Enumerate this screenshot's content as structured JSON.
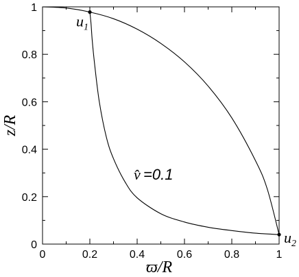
{
  "chart_data": {
    "type": "line",
    "xlabel": "ϖ/R",
    "ylabel": "z/R",
    "xlim": [
      0,
      1
    ],
    "ylim": [
      0,
      1
    ],
    "grid": false,
    "x_ticks": [
      "0",
      "0.2",
      "0.4",
      "0.6",
      "0.8",
      "1"
    ],
    "y_ticks": [
      "0",
      "0.2",
      "0.4",
      "0.6",
      "0.8",
      "1"
    ],
    "series": [
      {
        "x": [
          0,
          0.1,
          0.2,
          0.3,
          0.4,
          0.5,
          0.6,
          0.7,
          0.8,
          0.9,
          0.95,
          1.0
        ],
        "y": [
          1.0,
          0.995,
          0.978,
          0.95,
          0.906,
          0.846,
          0.768,
          0.666,
          0.532,
          0.352,
          0.232,
          0.04
        ]
      },
      {
        "x": [
          0.2,
          0.205,
          0.21,
          0.22,
          0.24,
          0.27,
          0.3,
          0.35,
          0.4,
          0.5,
          0.6,
          0.7,
          0.8,
          0.9,
          1.0
        ],
        "y": [
          0.978,
          0.93,
          0.86,
          0.76,
          0.6,
          0.45,
          0.36,
          0.26,
          0.195,
          0.128,
          0.093,
          0.071,
          0.057,
          0.046,
          0.04
        ]
      }
    ],
    "points": [
      {
        "label": "u",
        "sub": "1",
        "x": 0.2,
        "y": 0.978
      },
      {
        "label": "u",
        "sub": "2",
        "x": 1.0,
        "y": 0.04
      }
    ],
    "annotation": {
      "hat": "v̂",
      "text": "=0.1"
    }
  }
}
